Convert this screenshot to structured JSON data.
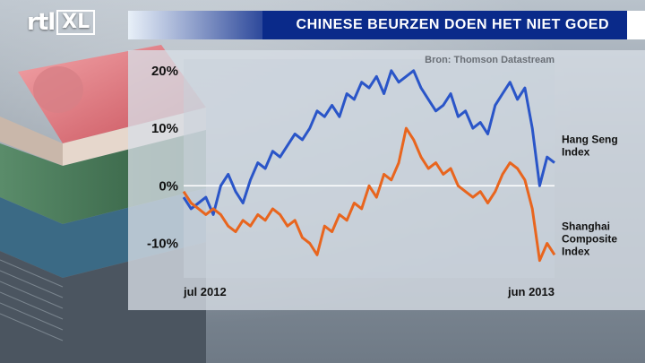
{
  "brand": {
    "logo_left": "rtl",
    "logo_right": "XL"
  },
  "title": "CHINESE BEURZEN DOEN HET NIET GOED",
  "source": "Bron: Thomson Datastream",
  "chart_data": {
    "type": "line",
    "title": "CHINESE BEURZEN DOEN HET NIET GOED",
    "xlabel": "",
    "ylabel": "",
    "x_tick_labels": [
      "jul 2012",
      "jun 2013"
    ],
    "y_ticks": [
      -10,
      0,
      10,
      20
    ],
    "y_tick_labels": [
      "-10%",
      "0%",
      "10%",
      "20%"
    ],
    "ylim": [
      -16,
      22
    ],
    "grid": "zero-line only",
    "legend": "right, labels at line ends",
    "x": [
      0,
      1,
      2,
      3,
      4,
      5,
      6,
      7,
      8,
      9,
      10,
      11,
      12,
      13,
      14,
      15,
      16,
      17,
      18,
      19,
      20,
      21,
      22,
      23,
      24,
      25,
      26,
      27,
      28,
      29,
      30,
      31,
      32,
      33,
      34,
      35,
      36,
      37,
      38,
      39,
      40,
      41,
      42,
      43,
      44,
      45,
      46,
      47,
      48,
      49,
      50
    ],
    "series": [
      {
        "name": "Hang Seng Index",
        "color": "#2a55c8",
        "values": [
          -2,
          -4,
          -3,
          -2,
          -5,
          0,
          2,
          -1,
          -3,
          1,
          4,
          3,
          6,
          5,
          7,
          9,
          8,
          10,
          13,
          12,
          14,
          12,
          16,
          15,
          18,
          17,
          19,
          16,
          20,
          18,
          19,
          20,
          17,
          15,
          13,
          14,
          16,
          12,
          13,
          10,
          11,
          9,
          14,
          16,
          18,
          15,
          17,
          10,
          0,
          5,
          4
        ]
      },
      {
        "name": "Shanghai Composite Index",
        "color": "#e8651e",
        "values": [
          -1,
          -3,
          -4,
          -5,
          -4,
          -5,
          -7,
          -8,
          -6,
          -7,
          -5,
          -6,
          -4,
          -5,
          -7,
          -6,
          -9,
          -10,
          -12,
          -7,
          -8,
          -5,
          -6,
          -3,
          -4,
          0,
          -2,
          2,
          1,
          4,
          10,
          8,
          5,
          3,
          4,
          2,
          3,
          0,
          -1,
          -2,
          -1,
          -3,
          -1,
          2,
          4,
          3,
          1,
          -4,
          -13,
          -10,
          -12
        ]
      }
    ]
  }
}
